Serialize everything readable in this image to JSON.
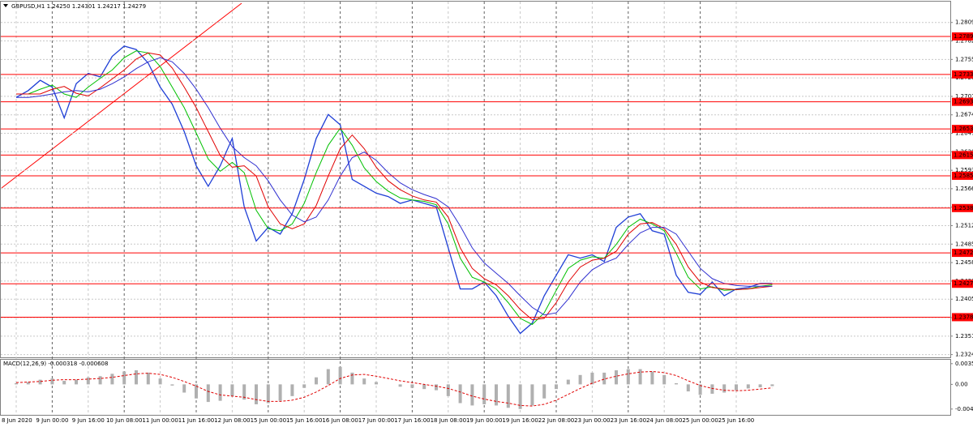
{
  "chart_data": [
    {
      "type": "line",
      "title": "GBPUSD,H1  1.24250 1.24301 1.24217 1.24279",
      "categories": [
        "8 Jun 2020",
        null,
        null,
        "9 Jun 00:00",
        null,
        null,
        "9 Jun 16:00",
        null,
        null,
        "10 Jun 08:00",
        null,
        null,
        "11 Jun 00:00",
        null,
        null,
        "11 Jun 16:00",
        null,
        null,
        "12 Jun 08:00",
        null,
        null,
        "15 Jun 00:00",
        null,
        null,
        "15 Jun 16:00",
        null,
        null,
        "16 Jun 08:00",
        null,
        null,
        "17 Jun 00:00",
        null,
        null,
        "17 Jun 16:00",
        null,
        null,
        "18 Jun 08:00",
        null,
        null,
        "19 Jun 00:00",
        null,
        null,
        "19 Jun 16:00",
        null,
        null,
        "22 Jun 08:00",
        null,
        null,
        "23 Jun 00:00",
        null,
        null,
        "23 Jun 16:00",
        null,
        null,
        "24 Jun 08:00",
        null,
        null,
        "25 Jun 00:00",
        null,
        null,
        "25 Jun 16:00",
        null,
        null,
        null
      ],
      "series": [
        {
          "color": "#1f3fd6",
          "values": [
            1.27,
            1.271,
            1.2725,
            1.2715,
            1.267,
            1.272,
            1.2735,
            1.273,
            1.276,
            1.2775,
            1.277,
            1.275,
            1.2715,
            1.269,
            1.265,
            1.26,
            1.257,
            1.26,
            1.264,
            1.254,
            1.249,
            1.251,
            1.25,
            1.253,
            1.258,
            1.264,
            1.2675,
            1.266,
            1.258,
            1.257,
            1.256,
            1.2555,
            1.2545,
            1.255,
            1.2545,
            1.254,
            1.248,
            1.242,
            1.242,
            1.243,
            1.241,
            1.238,
            1.2355,
            1.237,
            1.241,
            1.244,
            1.247,
            1.2465,
            1.247,
            1.246,
            1.251,
            1.2525,
            1.253,
            1.2505,
            1.25,
            1.244,
            1.2415,
            1.2412,
            1.243,
            1.241,
            1.242,
            1.2422,
            1.2428,
            1.2428
          ]
        },
        {
          "color": "#00c000",
          "values": [
            1.2705,
            1.2705,
            1.2712,
            1.2718,
            1.2705,
            1.27,
            1.2715,
            1.2728,
            1.274,
            1.2758,
            1.2768,
            1.2765,
            1.2745,
            1.2715,
            1.2685,
            1.2648,
            1.261,
            1.2592,
            1.2605,
            1.259,
            1.2535,
            1.2508,
            1.2505,
            1.2515,
            1.2545,
            1.259,
            1.263,
            1.2655,
            1.263,
            1.2597,
            1.2577,
            1.2563,
            1.2553,
            1.255,
            1.2548,
            1.2543,
            1.2515,
            1.2465,
            1.2437,
            1.243,
            1.242,
            1.24,
            1.2377,
            1.2368,
            1.2385,
            1.2418,
            1.245,
            1.2462,
            1.2467,
            1.2465,
            1.2485,
            1.251,
            1.2522,
            1.2515,
            1.2505,
            1.2472,
            1.2437,
            1.242,
            1.2423,
            1.2418,
            1.2419,
            1.242,
            1.2424,
            1.2426
          ]
        },
        {
          "color": "#e00000",
          "values": [
            1.2705,
            1.2705,
            1.2705,
            1.2712,
            1.2716,
            1.2706,
            1.2702,
            1.2714,
            1.2727,
            1.274,
            1.2756,
            1.2765,
            1.2762,
            1.2743,
            1.2715,
            1.2685,
            1.265,
            1.2615,
            1.2598,
            1.26,
            1.2585,
            1.254,
            1.2515,
            1.2508,
            1.2515,
            1.2542,
            1.2585,
            1.2625,
            1.2645,
            1.2625,
            1.2598,
            1.2578,
            1.2565,
            1.2556,
            1.255,
            1.2547,
            1.2525,
            1.248,
            1.245,
            1.2435,
            1.2426,
            1.241,
            1.239,
            1.2375,
            1.2377,
            1.24,
            1.243,
            1.2452,
            1.2462,
            1.2465,
            1.2475,
            1.25,
            1.2515,
            1.2517,
            1.2508,
            1.2485,
            1.2452,
            1.243,
            1.2422,
            1.242,
            1.2419,
            1.242,
            1.2422,
            1.2424
          ]
        },
        {
          "color": "#3030d0",
          "values": [
            1.27,
            1.27,
            1.2702,
            1.2705,
            1.2708,
            1.271,
            1.2708,
            1.2712,
            1.272,
            1.273,
            1.2742,
            1.2752,
            1.2758,
            1.2752,
            1.2735,
            1.2712,
            1.2685,
            1.2655,
            1.2628,
            1.2612,
            1.26,
            1.2578,
            1.255,
            1.2528,
            1.2518,
            1.2525,
            1.255,
            1.2585,
            1.2612,
            1.262,
            1.2608,
            1.259,
            1.2575,
            1.2565,
            1.2558,
            1.2552,
            1.254,
            1.2512,
            1.248,
            1.2458,
            1.2443,
            1.2428,
            1.241,
            1.2393,
            1.2382,
            1.2385,
            1.2405,
            1.243,
            1.2448,
            1.2458,
            1.2465,
            1.2485,
            1.2502,
            1.251,
            1.251,
            1.25,
            1.2475,
            1.245,
            1.2435,
            1.2428,
            1.2425,
            1.2424,
            1.2424,
            1.2424
          ]
        }
      ],
      "levels": {
        "color": "#ff0000",
        "values": [
          1.27891,
          1.27336,
          1.26935,
          1.26539,
          1.26157,
          1.25854,
          1.25382,
          1.24727,
          1.24275,
          1.23787
        ]
      },
      "ylim": [
        1.232,
        1.284
      ],
      "yticks": [
        1.28095,
        1.27825,
        1.27555,
        1.27285,
        1.27015,
        1.26745,
        1.26475,
        1.26205,
        1.25935,
        1.25665,
        1.25395,
        1.25125,
        1.24855,
        1.24585,
        1.24315,
        {
          "value": 1.2405,
          "label": "1.24050"
        },
        {
          "value": 1.2378,
          "label": "1.23780"
        },
        {
          "value": 1.2351,
          "label": "1.23510"
        },
        {
          "value": 1.2324,
          "label": "1.23240"
        }
      ],
      "grid": true
    },
    {
      "type": "macd",
      "title": "MACD(12,26,9) -0.000318 -0.000608",
      "series": [
        {
          "color": "#b0b0b0",
          "values": [
            0.0002,
            0.0004,
            0.0008,
            0.001,
            0.0006,
            0.0008,
            0.0012,
            0.0014,
            0.0018,
            0.0022,
            0.0024,
            0.002,
            0.001,
            -0.0002,
            -0.0014,
            -0.0024,
            -0.003,
            -0.0028,
            -0.002,
            -0.0026,
            -0.0034,
            -0.0032,
            -0.0028,
            -0.002,
            -0.0006,
            0.0012,
            0.0026,
            0.003,
            0.002,
            0.001,
            0.0004,
            0.0,
            -0.0004,
            -0.0006,
            -0.0008,
            -0.001,
            -0.002,
            -0.0032,
            -0.0036,
            -0.0034,
            -0.0036,
            -0.004,
            -0.0042,
            -0.0036,
            -0.0024,
            -0.0008,
            0.0008,
            0.0016,
            0.002,
            0.002,
            0.0024,
            0.0026,
            0.0026,
            0.0022,
            0.0016,
            0.0002,
            -0.0012,
            -0.0018,
            -0.0016,
            -0.0014,
            -0.001,
            -0.0007,
            -0.0005,
            -0.0003
          ]
        },
        {
          "color": "#e00000",
          "values": [
            0.0003,
            0.0004,
            0.0005,
            0.0007,
            0.0008,
            0.0008,
            0.0009,
            0.001,
            0.0012,
            0.0015,
            0.0018,
            0.0019,
            0.0017,
            0.0012,
            0.0005,
            -0.0003,
            -0.0012,
            -0.0018,
            -0.002,
            -0.0022,
            -0.0026,
            -0.0029,
            -0.0029,
            -0.0027,
            -0.0022,
            -0.0013,
            -0.0002,
            0.001,
            0.0016,
            0.0017,
            0.0014,
            0.001,
            0.0006,
            0.0003,
            0.0,
            -0.0003,
            -0.0007,
            -0.0013,
            -0.002,
            -0.0025,
            -0.0029,
            -0.0032,
            -0.0036,
            -0.0037,
            -0.0034,
            -0.0027,
            -0.0017,
            -0.0007,
            0.0002,
            0.0009,
            0.0014,
            0.0018,
            0.0021,
            0.0022,
            0.002,
            0.0015,
            0.0006,
            -0.0002,
            -0.0007,
            -0.001,
            -0.0011,
            -0.001,
            -0.0008,
            -0.0006
          ]
        }
      ],
      "ylim": [
        -0.0052,
        0.0042
      ],
      "yticks": [
        0.003532,
        {
          "value": 0,
          "label": "0.00"
        },
        -0.004211
      ]
    }
  ]
}
